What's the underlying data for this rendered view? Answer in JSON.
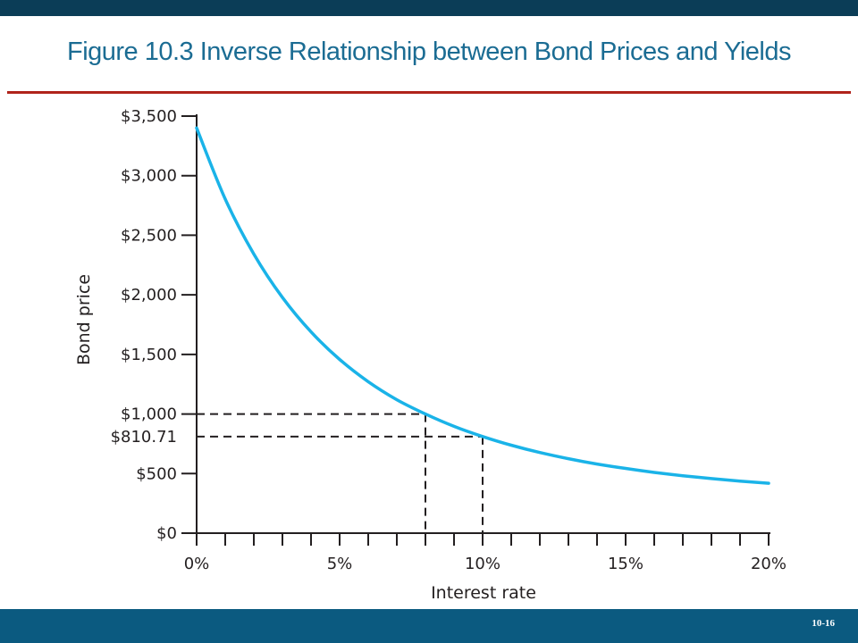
{
  "slide": {
    "title": "Figure 10.3 Inverse Relationship between Bond Prices and Yields",
    "page_number": "10-16"
  },
  "colors": {
    "top_bar": "#0b3d57",
    "bottom_bar": "#0b5a80",
    "title_text": "#1b6c93",
    "title_rule": "#b0231b",
    "curve": "#1ab3e8",
    "axis": "#231f20"
  },
  "chart_data": {
    "type": "line",
    "title": "",
    "xlabel": "Interest rate",
    "ylabel": "Bond price",
    "xlim": [
      0,
      20
    ],
    "ylim": [
      0,
      3500
    ],
    "x_ticks": [
      0,
      5,
      10,
      15,
      20
    ],
    "x_tick_labels": [
      "0%",
      "5%",
      "10%",
      "15%",
      "20%"
    ],
    "x_minor_step": 1,
    "y_ticks": [
      0,
      500,
      1000,
      1500,
      2000,
      2500,
      3000,
      3500
    ],
    "y_tick_labels": [
      "$0",
      "$500",
      "$1,000",
      "$1,500",
      "$2,000",
      "$2,500",
      "$3,000",
      "$3,500"
    ],
    "grid": false,
    "series": [
      {
        "x": [
          0,
          1,
          2,
          3,
          4,
          5,
          6,
          7,
          8,
          9,
          10,
          11,
          12,
          13,
          14,
          15,
          16,
          17,
          18,
          19,
          20
        ],
        "y": [
          3400,
          2804,
          2342,
          1978,
          1689,
          1458,
          1271,
          1120,
          1000,
          896,
          810.71,
          738,
          677,
          625,
          580,
          543,
          510,
          482,
          458,
          437,
          419
        ]
      }
    ],
    "annotations": [
      {
        "x": 8,
        "y": 1000,
        "label": "",
        "style": "dashed-guides"
      },
      {
        "x": 10,
        "y": 810.71,
        "label": "$810.71",
        "style": "dashed-guides"
      }
    ]
  }
}
